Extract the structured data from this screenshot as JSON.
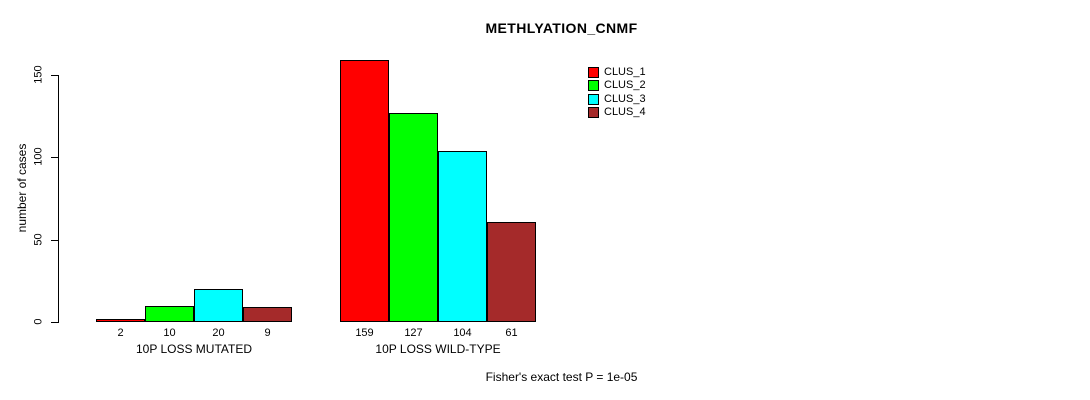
{
  "chart_data": {
    "type": "bar",
    "title": "METHLYATION_CNMF",
    "ylabel": "number of cases",
    "xlabel": "",
    "yticks": [
      0,
      50,
      100,
      150
    ],
    "ylim": [
      0,
      165
    ],
    "grid": false,
    "legend_position": "top-right",
    "bar_value_labels": true,
    "categories": [
      "10P LOSS MUTATED",
      "10P LOSS WILD-TYPE"
    ],
    "series": [
      {
        "name": "CLUS_1",
        "color": "#ff0000",
        "values": [
          2,
          159
        ]
      },
      {
        "name": "CLUS_2",
        "color": "#00ff00",
        "values": [
          10,
          127
        ]
      },
      {
        "name": "CLUS_3",
        "color": "#00ffff",
        "values": [
          20,
          104
        ]
      },
      {
        "name": "CLUS_4",
        "color": "#a52a2a",
        "values": [
          9,
          61
        ]
      }
    ],
    "annotation": "Fisher's exact test P = 1e-05"
  }
}
